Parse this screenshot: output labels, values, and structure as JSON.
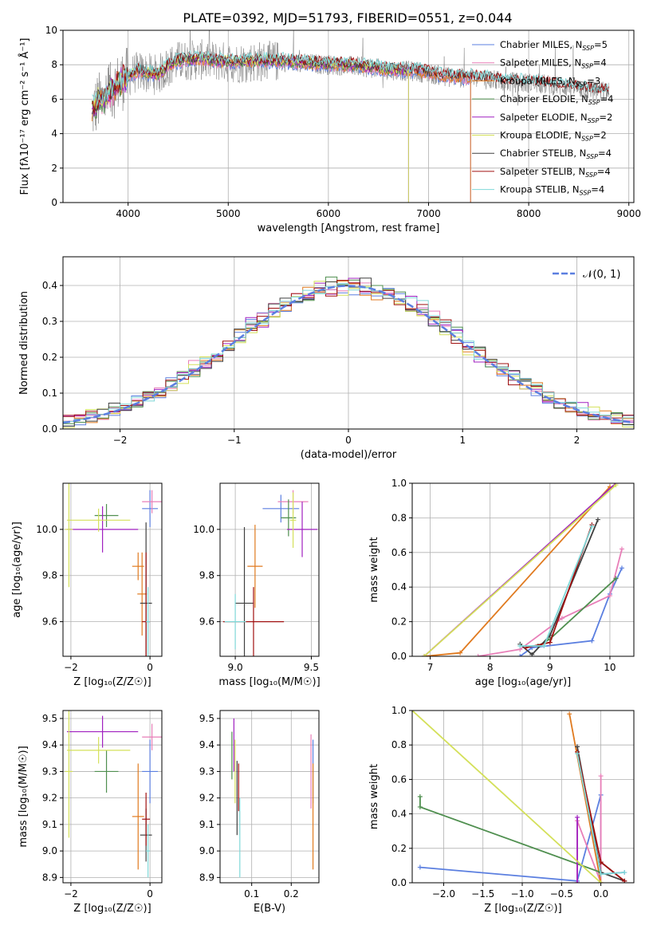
{
  "figure": {
    "title": "PLATE=0392, MJD=51793, FIBERID=0551, z=0.044"
  },
  "colors": {
    "models": [
      "#5b7fe0",
      "#e87fb8",
      "#e07a1f",
      "#4f8f4f",
      "#a020c0",
      "#d4e05a",
      "#404040",
      "#a01010",
      "#7fd8d8"
    ]
  },
  "chart_data": [
    {
      "id": "spectrum",
      "type": "line",
      "title": "PLATE=0392, MJD=51793, FIBERID=0551, z=0.044",
      "xlabel": "wavelength [Angstrom, rest frame]",
      "ylabel": "Flux [fλ10⁻¹⁷ erg cm⁻² s⁻¹ Å⁻¹]",
      "xlim": [
        3350,
        9050
      ],
      "ylim": [
        0,
        10
      ],
      "xticks": [
        4000,
        5000,
        6000,
        7000,
        8000,
        9000
      ],
      "yticks": [
        0,
        2,
        4,
        6,
        8,
        10
      ],
      "observed_spectrum": {
        "color": "#808080",
        "points": [
          [
            3640,
            5.2
          ],
          [
            3700,
            5.8
          ],
          [
            3800,
            6.2
          ],
          [
            3900,
            6.9
          ],
          [
            4000,
            7.3
          ],
          [
            4100,
            7.6
          ],
          [
            4200,
            7.5
          ],
          [
            4300,
            7.4
          ],
          [
            4400,
            7.9
          ],
          [
            4500,
            8.2
          ],
          [
            4700,
            8.3
          ],
          [
            4900,
            8.2
          ],
          [
            5100,
            8.1
          ],
          [
            5300,
            8.2
          ],
          [
            5500,
            8.2
          ],
          [
            5700,
            8.1
          ],
          [
            6000,
            8.0
          ],
          [
            6300,
            7.9
          ],
          [
            6600,
            7.7
          ],
          [
            6900,
            7.6
          ],
          [
            7200,
            7.3
          ],
          [
            7500,
            7.2
          ],
          [
            7800,
            7.0
          ],
          [
            8100,
            6.9
          ],
          [
            8400,
            6.7
          ],
          [
            8800,
            6.4
          ]
        ]
      },
      "series": [
        {
          "name": "Chabrier MILES, N_SSP=5",
          "label_main": "Chabrier MILES, N",
          "label_sub": "SSP",
          "label_tail": "=5",
          "end_x": 7420
        },
        {
          "name": "Salpeter MILES, N_SSP=4",
          "label_main": "Salpeter MILES, N",
          "label_sub": "SSP",
          "label_tail": "=4",
          "end_x": 7420
        },
        {
          "name": "Kroupa MILES, N_SSP=3",
          "label_main": "Kroupa MILES, N",
          "label_sub": "SSP",
          "label_tail": "=3",
          "end_x": 7420
        },
        {
          "name": "Chabrier ELODIE, N_SSP=4",
          "label_main": "Chabrier ELODIE, N",
          "label_sub": "SSP",
          "label_tail": "=4",
          "end_x": 6800
        },
        {
          "name": "Salpeter ELODIE, N_SSP=2",
          "label_main": "Salpeter ELODIE, N",
          "label_sub": "SSP",
          "label_tail": "=2",
          "end_x": 6800
        },
        {
          "name": "Kroupa ELODIE, N_SSP=2",
          "label_main": "Kroupa ELODIE, N",
          "label_sub": "SSP",
          "label_tail": "=2",
          "end_x": 6800
        },
        {
          "name": "Chabrier STELIB, N_SSP=4",
          "label_main": "Chabrier STELIB, N",
          "label_sub": "SSP",
          "label_tail": "=4",
          "end_x": 8800
        },
        {
          "name": "Salpeter STELIB, N_SSP=4",
          "label_main": "Salpeter STELIB, N",
          "label_sub": "SSP",
          "label_tail": "=4",
          "end_x": 8800
        },
        {
          "name": "Kroupa STELIB, N_SSP=4",
          "label_main": "Kroupa STELIB, N",
          "label_sub": "SSP",
          "label_tail": "=4",
          "end_x": 8800
        }
      ],
      "dropouts": [
        3900,
        5740,
        6800,
        7420
      ]
    },
    {
      "id": "residuals",
      "type": "histogram",
      "xlabel": "(data-model)/error",
      "ylabel": "Normed distribution",
      "xlim": [
        -2.5,
        2.5
      ],
      "ylim": [
        0,
        0.48
      ],
      "xticks": [
        -2,
        -1,
        0,
        1,
        2
      ],
      "yticks": [
        0.0,
        0.1,
        0.2,
        0.3,
        0.4
      ],
      "bin_width": 0.1,
      "reference_curve": {
        "label": "𝒩(0, 1)",
        "type": "gaussian",
        "mean": 0,
        "sigma": 1,
        "color": "#5b7fe0"
      }
    },
    {
      "id": "age_vs_Z",
      "type": "scatter",
      "xlabel": "Z [log₁₀(Z/Z☉)]",
      "ylabel": "age  [log₁₀(age/yr)]",
      "xlim": [
        -2.2,
        0.3
      ],
      "ylim": [
        9.45,
        10.2
      ],
      "xticks": [
        -2,
        0
      ],
      "yticks": [
        9.6,
        9.8,
        10.0
      ],
      "points": [
        {
          "x": 0.0,
          "y": 10.09,
          "xerr": 0.2,
          "yerr": 0.08,
          "c": 0
        },
        {
          "x": 0.05,
          "y": 10.12,
          "xerr": 0.25,
          "yerr": 0.05,
          "c": 1
        },
        {
          "x": -0.3,
          "y": 9.84,
          "xerr": 0.15,
          "yerr": 0.06,
          "c": 2
        },
        {
          "x": -0.2,
          "y": 9.72,
          "xerr": 0.12,
          "yerr": 0.18,
          "c": 2
        },
        {
          "x": -1.1,
          "y": 10.06,
          "xerr": 0.3,
          "yerr": 0.05,
          "c": 3
        },
        {
          "x": -1.2,
          "y": 10.0,
          "xerr": 0.9,
          "yerr": 0.1,
          "c": 4
        },
        {
          "x": -1.3,
          "y": 10.04,
          "xerr": 0.8,
          "yerr": 0.05,
          "c": 5
        },
        {
          "x": -2.05,
          "y": 10.0,
          "xerr": 0.1,
          "yerr": 0.25,
          "c": 5
        },
        {
          "x": -0.1,
          "y": 9.68,
          "xerr": 0.15,
          "yerr": 0.35,
          "c": 6
        },
        {
          "x": -0.1,
          "y": 9.6,
          "xerr": 0.1,
          "yerr": 0.3,
          "c": 7
        },
        {
          "x": -0.05,
          "y": 9.6,
          "xerr": 0.05,
          "yerr": 0.15,
          "c": 8
        }
      ]
    },
    {
      "id": "age_vs_mass",
      "type": "scatter",
      "xlabel": "mass [log₁₀(M/M☉)]",
      "ylabel": "",
      "xlim": [
        8.9,
        9.55
      ],
      "ylim": [
        9.45,
        10.2
      ],
      "xticks": [
        9.0,
        9.5
      ],
      "yticks": [
        9.6,
        9.8,
        10.0
      ],
      "points": [
        {
          "x": 9.3,
          "y": 10.09,
          "xerr": 0.12,
          "yerr": 0.06,
          "c": 0
        },
        {
          "x": 9.38,
          "y": 10.12,
          "xerr": 0.1,
          "yerr": 0.05,
          "c": 1
        },
        {
          "x": 9.13,
          "y": 9.84,
          "xerr": 0.05,
          "yerr": 0.18,
          "c": 2
        },
        {
          "x": 9.35,
          "y": 10.05,
          "xerr": 0.05,
          "yerr": 0.08,
          "c": 3
        },
        {
          "x": 9.44,
          "y": 10.0,
          "xerr": 0.1,
          "yerr": 0.12,
          "c": 4
        },
        {
          "x": 9.38,
          "y": 10.04,
          "xerr": 0.02,
          "yerr": 0.12,
          "c": 5
        },
        {
          "x": 9.06,
          "y": 9.68,
          "xerr": 0.06,
          "yerr": 0.33,
          "c": 6
        },
        {
          "x": 9.12,
          "y": 9.6,
          "xerr": 0.2,
          "yerr": 0.15,
          "c": 7
        },
        {
          "x": 9.0,
          "y": 9.6,
          "xerr": 0.07,
          "yerr": 0.12,
          "c": 8
        }
      ]
    },
    {
      "id": "weight_vs_age",
      "type": "line",
      "xlabel": "age  [log₁₀(age/yr)]",
      "ylabel": "mass weight",
      "xlim": [
        6.7,
        10.4
      ],
      "ylim": [
        0,
        1
      ],
      "xticks": [
        7,
        8,
        9,
        10
      ],
      "yticks": [
        0.0,
        0.2,
        0.4,
        0.6,
        0.8,
        1.0
      ],
      "series": [
        {
          "c": 0,
          "points": [
            [
              8.5,
              0.0
            ],
            [
              8.7,
              0.05
            ],
            [
              9.7,
              0.09
            ],
            [
              10.0,
              0.36
            ],
            [
              10.2,
              0.51
            ]
          ]
        },
        {
          "c": 1,
          "points": [
            [
              7.8,
              0.0
            ],
            [
              8.5,
              0.04
            ],
            [
              9.2,
              0.22
            ],
            [
              10.0,
              0.35
            ],
            [
              10.2,
              0.62
            ]
          ]
        },
        {
          "c": 2,
          "points": [
            [
              6.9,
              0.0
            ],
            [
              7.5,
              0.02
            ],
            [
              10.0,
              0.98
            ]
          ]
        },
        {
          "c": 3,
          "points": [
            [
              8.8,
              0.06
            ],
            [
              9.0,
              0.1
            ],
            [
              10.1,
              0.45
            ]
          ]
        },
        {
          "c": 4,
          "points": [
            [
              6.9,
              0.0
            ],
            [
              10.1,
              1.0
            ]
          ]
        },
        {
          "c": 5,
          "points": [
            [
              6.9,
              0.0
            ],
            [
              10.1,
              0.99
            ]
          ]
        },
        {
          "c": 6,
          "points": [
            [
              8.5,
              0.07
            ],
            [
              8.7,
              0.01
            ],
            [
              9.0,
              0.12
            ],
            [
              9.8,
              0.79
            ]
          ]
        },
        {
          "c": 7,
          "points": [
            [
              8.6,
              0.05
            ],
            [
              9.0,
              0.08
            ],
            [
              9.7,
              0.76
            ]
          ]
        },
        {
          "c": 8,
          "points": [
            [
              8.5,
              0.06
            ],
            [
              8.9,
              0.06
            ],
            [
              9.7,
              0.75
            ]
          ]
        }
      ]
    },
    {
      "id": "mass_vs_Z",
      "type": "scatter",
      "xlabel": "Z [log₁₀(Z/Z☉)]",
      "ylabel": "mass [log₁₀(M/M☉)]",
      "xlim": [
        -2.2,
        0.3
      ],
      "ylim": [
        8.88,
        9.53
      ],
      "xticks": [
        -2,
        0
      ],
      "yticks": [
        8.9,
        9.0,
        9.1,
        9.2,
        9.3,
        9.4,
        9.5
      ],
      "points": [
        {
          "x": 0.0,
          "y": 9.3,
          "xerr": 0.2,
          "yerr": 0.12,
          "c": 0
        },
        {
          "x": 0.05,
          "y": 9.43,
          "xerr": 0.25,
          "yerr": 0.05,
          "c": 1
        },
        {
          "x": -0.3,
          "y": 9.13,
          "xerr": 0.15,
          "yerr": 0.2,
          "c": 2
        },
        {
          "x": -1.1,
          "y": 9.3,
          "xerr": 0.3,
          "yerr": 0.08,
          "c": 3
        },
        {
          "x": -1.2,
          "y": 9.45,
          "xerr": 0.9,
          "yerr": 0.06,
          "c": 4
        },
        {
          "x": -1.3,
          "y": 9.38,
          "xerr": 0.8,
          "yerr": 0.05,
          "c": 5
        },
        {
          "x": -2.05,
          "y": 9.3,
          "xerr": 0.1,
          "yerr": 0.25,
          "c": 5
        },
        {
          "x": -0.1,
          "y": 9.06,
          "xerr": 0.15,
          "yerr": 0.1,
          "c": 6
        },
        {
          "x": -0.1,
          "y": 9.12,
          "xerr": 0.1,
          "yerr": 0.1,
          "c": 7
        },
        {
          "x": -0.05,
          "y": 9.0,
          "xerr": 0.05,
          "yerr": 0.1,
          "c": 8
        }
      ]
    },
    {
      "id": "mass_vs_ebv",
      "type": "scatter",
      "xlabel": "E(B-V)",
      "ylabel": "",
      "xlim": [
        0.02,
        0.27
      ],
      "ylim": [
        8.88,
        9.53
      ],
      "xticks": [
        0.1,
        0.2
      ],
      "yticks": [
        8.9,
        9.0,
        9.1,
        9.2,
        9.3,
        9.4,
        9.5
      ],
      "points": [
        {
          "x": 0.255,
          "y": 9.3,
          "xerr": 0,
          "yerr": 0.12,
          "c": 0
        },
        {
          "x": 0.25,
          "y": 9.3,
          "xerr": 0,
          "yerr": 0.14,
          "c": 1
        },
        {
          "x": 0.255,
          "y": 9.13,
          "xerr": 0,
          "yerr": 0.2,
          "c": 2
        },
        {
          "x": 0.05,
          "y": 9.36,
          "xerr": 0,
          "yerr": 0.09,
          "c": 3
        },
        {
          "x": 0.055,
          "y": 9.4,
          "xerr": 0,
          "yerr": 0.1,
          "c": 4
        },
        {
          "x": 0.058,
          "y": 9.3,
          "xerr": 0,
          "yerr": 0.12,
          "c": 5
        },
        {
          "x": 0.063,
          "y": 9.2,
          "xerr": 0,
          "yerr": 0.14,
          "c": 6
        },
        {
          "x": 0.067,
          "y": 9.24,
          "xerr": 0,
          "yerr": 0.09,
          "c": 7
        },
        {
          "x": 0.07,
          "y": 9.05,
          "xerr": 0,
          "yerr": 0.15,
          "c": 8
        }
      ]
    },
    {
      "id": "weight_vs_Z",
      "type": "line",
      "xlabel": "Z [log₁₀(Z/Z☉)]",
      "ylabel": "mass weight",
      "xlim": [
        -2.4,
        0.42
      ],
      "ylim": [
        0,
        1
      ],
      "xticks": [
        -2.0,
        -1.5,
        -1.0,
        -0.5,
        0.0
      ],
      "yticks": [
        0.0,
        0.2,
        0.4,
        0.6,
        0.8,
        1.0
      ],
      "series": [
        {
          "c": 0,
          "points": [
            [
              -2.3,
              0.09
            ],
            [
              -0.3,
              0.01
            ],
            [
              0.0,
              0.51
            ],
            [
              0.0,
              0.05
            ],
            [
              0.3,
              0.06
            ]
          ]
        },
        {
          "c": 1,
          "points": [
            [
              -0.3,
              0.0
            ],
            [
              -0.3,
              0.36
            ],
            [
              0.0,
              0.0
            ],
            [
              0.0,
              0.62
            ]
          ]
        },
        {
          "c": 2,
          "points": [
            [
              -0.4,
              0.98
            ],
            [
              0.0,
              0.0
            ]
          ]
        },
        {
          "c": 3,
          "points": [
            [
              -2.3,
              0.5
            ],
            [
              -2.3,
              0.44
            ],
            [
              0.0,
              0.06
            ]
          ]
        },
        {
          "c": 4,
          "points": [
            [
              -0.3,
              0.38
            ],
            [
              -0.3,
              0.0
            ]
          ]
        },
        {
          "c": 5,
          "points": [
            [
              -2.4,
              1.0
            ],
            [
              0.0,
              0.0
            ]
          ]
        },
        {
          "c": 6,
          "points": [
            [
              -0.3,
              0.79
            ],
            [
              0.0,
              0.06
            ],
            [
              0.3,
              0.01
            ],
            [
              0.0,
              0.12
            ],
            [
              0.3,
              0.01
            ]
          ]
        },
        {
          "c": 7,
          "points": [
            [
              -0.3,
              0.76
            ],
            [
              0.0,
              0.12
            ],
            [
              0.3,
              0.01
            ]
          ]
        },
        {
          "c": 8,
          "points": [
            [
              -0.3,
              0.75
            ],
            [
              0.0,
              0.05
            ],
            [
              0.3,
              0.06
            ]
          ]
        }
      ]
    }
  ]
}
